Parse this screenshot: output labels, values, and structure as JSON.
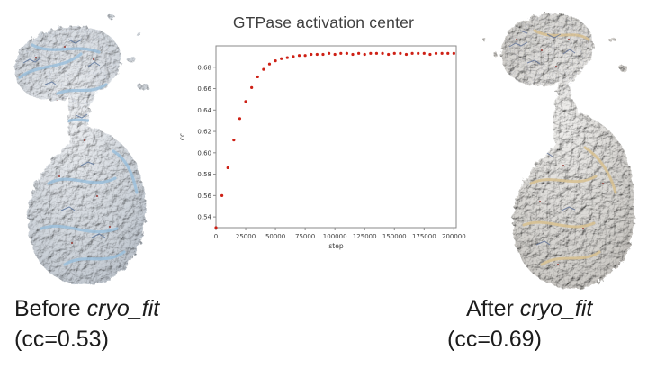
{
  "slide": {
    "left_caption": {
      "prefix": "Before ",
      "italic": "cryo_fit",
      "line2": "(cc=0.53)"
    },
    "right_caption": {
      "prefix": "After ",
      "italic": "cryo_fit",
      "line2": "(cc=0.69)"
    }
  },
  "chart_data": {
    "type": "scatter",
    "title": "GTPase activation center",
    "xlabel": "step",
    "ylabel": "cc",
    "xlim": [
      0,
      202000
    ],
    "ylim": [
      0.53,
      0.7
    ],
    "grid": false,
    "legend": null,
    "marker_color": "#ce2015",
    "frame_color": "#8a8a8a",
    "xticks": [
      0,
      25000,
      50000,
      75000,
      100000,
      125000,
      150000,
      175000,
      200000
    ],
    "xtick_labels": [
      "0",
      "25000",
      "50000",
      "75000",
      "100000",
      "125000",
      "150000",
      "175000",
      "200000"
    ],
    "yticks": [
      0.54,
      0.56,
      0.58,
      0.6,
      0.62,
      0.64,
      0.66,
      0.68
    ],
    "ytick_labels": [
      "0.54",
      "0.56",
      "0.58",
      "0.60",
      "0.62",
      "0.64",
      "0.66",
      "0.68"
    ],
    "x": [
      0,
      5000,
      10000,
      15000,
      20000,
      25000,
      30000,
      35000,
      40000,
      45000,
      50000,
      55000,
      60000,
      65000,
      70000,
      75000,
      80000,
      85000,
      90000,
      95000,
      100000,
      105000,
      110000,
      115000,
      120000,
      125000,
      130000,
      135000,
      140000,
      145000,
      150000,
      155000,
      160000,
      165000,
      170000,
      175000,
      180000,
      185000,
      190000,
      195000,
      200000
    ],
    "y": [
      0.53,
      0.56,
      0.586,
      0.612,
      0.632,
      0.648,
      0.661,
      0.671,
      0.678,
      0.683,
      0.686,
      0.688,
      0.689,
      0.69,
      0.691,
      0.691,
      0.692,
      0.692,
      0.692,
      0.693,
      0.692,
      0.693,
      0.693,
      0.692,
      0.693,
      0.692,
      0.693,
      0.693,
      0.693,
      0.692,
      0.693,
      0.693,
      0.692,
      0.693,
      0.693,
      0.693,
      0.692,
      0.693,
      0.693,
      0.693,
      0.693
    ]
  },
  "figure_colors": {
    "map_gray": "#ccd2d9",
    "ribbon_blue": "#9cc0dc",
    "stick_blue": "#4f6b96",
    "ribbon_tan": "#d8c193",
    "speck_red": "#963832"
  }
}
